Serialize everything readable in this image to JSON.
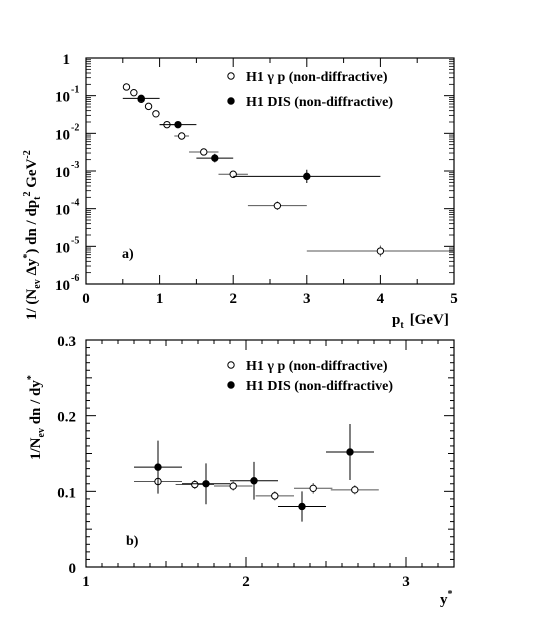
{
  "chart_data": [
    {
      "type": "scatter",
      "panel_label": "a)",
      "xlabel": "p_t  [GeV]",
      "ylabel": "1/ (N_ev Δy*) dn / dp_t^2 GeV^-2",
      "xlim": [
        0,
        5
      ],
      "ylim": [
        1e-06,
        1
      ],
      "yscale": "log",
      "x_ticks": [
        "0",
        "1",
        "2",
        "3",
        "4",
        "5"
      ],
      "y_ticks": [
        {
          "base": "1",
          "exp": ""
        },
        {
          "base": "10",
          "exp": "-1"
        },
        {
          "base": "10",
          "exp": "-2"
        },
        {
          "base": "10",
          "exp": "-3"
        },
        {
          "base": "10",
          "exp": "-4"
        },
        {
          "base": "10",
          "exp": "-5"
        },
        {
          "base": "10",
          "exp": "-6"
        }
      ],
      "legend": {
        "placement": "top-right"
      },
      "series": [
        {
          "name": "H1  γ p (non-diffractive)",
          "marker": "open-circle",
          "points": [
            {
              "x": 0.55,
              "y": 0.17,
              "xerr": 0,
              "yerr_factor": 1.05
            },
            {
              "x": 0.65,
              "y": 0.12,
              "xerr": 0,
              "yerr_factor": 1.05
            },
            {
              "x": 0.75,
              "y": 0.08,
              "xerr": 0,
              "yerr_factor": 1.05
            },
            {
              "x": 0.85,
              "y": 0.052,
              "xerr": 0,
              "yerr_factor": 1.05
            },
            {
              "x": 0.95,
              "y": 0.033,
              "xerr": 0,
              "yerr_factor": 1.05
            },
            {
              "x": 1.1,
              "y": 0.017,
              "xerr": 0.1,
              "yerr_factor": 1.05
            },
            {
              "x": 1.3,
              "y": 0.0085,
              "xerr": 0.1,
              "yerr_factor": 1.1
            },
            {
              "x": 1.6,
              "y": 0.0032,
              "xerr": 0.2,
              "yerr_factor": 1.15
            },
            {
              "x": 2.0,
              "y": 0.00082,
              "xerr": 0.2,
              "yerr_factor": 1.2
            },
            {
              "x": 2.6,
              "y": 0.00012,
              "xerr": 0.4,
              "yerr_factor": 1.3
            },
            {
              "x": 4.0,
              "y": 7.5e-06,
              "xerr": 1.0,
              "yerr_factor": 1.4
            }
          ]
        },
        {
          "name": "H1  DIS (non-diffractive)",
          "marker": "filled-circle",
          "points": [
            {
              "x": 0.75,
              "y": 0.085,
              "xerr": 0.25,
              "yerr_factor": 1.1
            },
            {
              "x": 1.25,
              "y": 0.017,
              "xerr": 0.25,
              "yerr_factor": 1.15
            },
            {
              "x": 1.75,
              "y": 0.0022,
              "xerr": 0.25,
              "yerr_factor": 1.3
            },
            {
              "x": 3.0,
              "y": 0.00072,
              "xerr": 1.0,
              "yerr_factor": 1.5
            }
          ]
        }
      ]
    },
    {
      "type": "scatter",
      "panel_label": "b)",
      "xlabel": "y*",
      "ylabel": "1/N_ev dn / dy*",
      "xlim": [
        1,
        3.3
      ],
      "ylim": [
        0,
        0.3
      ],
      "x_ticks": [
        "1",
        "2",
        "3"
      ],
      "y_ticks": [
        "0",
        "0.1",
        "0.2",
        "0.3"
      ],
      "legend": {
        "placement": "top-right"
      },
      "series": [
        {
          "name": "H1  γ p (non-diffractive)",
          "marker": "open-circle",
          "points": [
            {
              "x": 1.45,
              "y": 0.113,
              "xerr": 0.15,
              "yerr": 0.008
            },
            {
              "x": 1.68,
              "y": 0.109,
              "xerr": 0.12,
              "yerr": 0.006
            },
            {
              "x": 1.92,
              "y": 0.107,
              "xerr": 0.12,
              "yerr": 0.006
            },
            {
              "x": 2.18,
              "y": 0.094,
              "xerr": 0.12,
              "yerr": 0.006
            },
            {
              "x": 2.42,
              "y": 0.104,
              "xerr": 0.12,
              "yerr": 0.007
            },
            {
              "x": 2.68,
              "y": 0.102,
              "xerr": 0.15,
              "yerr": 0.006
            }
          ]
        },
        {
          "name": "H1  DIS (non-diffractive)",
          "marker": "filled-circle",
          "points": [
            {
              "x": 1.45,
              "y": 0.132,
              "xerr": 0.15,
              "yerr": 0.035
            },
            {
              "x": 1.75,
              "y": 0.11,
              "xerr": 0.15,
              "yerr": 0.027
            },
            {
              "x": 2.05,
              "y": 0.114,
              "xerr": 0.15,
              "yerr": 0.025
            },
            {
              "x": 2.35,
              "y": 0.08,
              "xerr": 0.15,
              "yerr": 0.02
            },
            {
              "x": 2.65,
              "y": 0.152,
              "xerr": 0.15,
              "yerr": 0.037
            }
          ]
        }
      ]
    }
  ]
}
